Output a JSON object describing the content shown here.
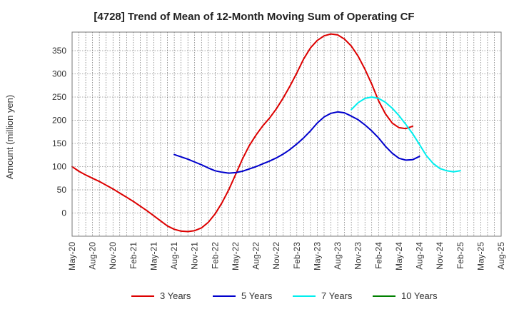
{
  "chart_data": {
    "type": "line",
    "title": "[4728]  Trend of Mean of 12-Month Moving Sum of Operating CF",
    "xlabel": "",
    "ylabel": "Amount (million yen)",
    "ylim": [
      -50,
      390
    ],
    "yticks": [
      0,
      50,
      100,
      150,
      200,
      250,
      300,
      350
    ],
    "grid": true,
    "legend_position": "bottom",
    "x_tick_labels": [
      "May-20",
      "Aug-20",
      "Nov-20",
      "Feb-21",
      "May-21",
      "Aug-21",
      "Nov-21",
      "Feb-22",
      "May-22",
      "Aug-22",
      "Nov-22",
      "Feb-23",
      "May-23",
      "Aug-23",
      "Nov-23",
      "Feb-24",
      "May-24",
      "Aug-24",
      "Nov-24",
      "Feb-25",
      "May-25",
      "Aug-25"
    ],
    "series": [
      {
        "name": "3 Years",
        "color": "#dd0000",
        "start_month_index": 0,
        "values": [
          100,
          90,
          82,
          75,
          68,
          60,
          52,
          43,
          34,
          25,
          15,
          5,
          -6,
          -17,
          -28,
          -35,
          -39,
          -40,
          -38,
          -32,
          -20,
          -2,
          22,
          50,
          83,
          116,
          145,
          168,
          188,
          205,
          225,
          248,
          274,
          302,
          332,
          356,
          372,
          382,
          386,
          384,
          375,
          360,
          338,
          310,
          278,
          242,
          214,
          194,
          184,
          182,
          187
        ]
      },
      {
        "name": "5 Years",
        "color": "#0000cc",
        "start_month_index": 15,
        "values": [
          126,
          121,
          116,
          110,
          104,
          97,
          91,
          88,
          86,
          87,
          90,
          95,
          100,
          106,
          112,
          119,
          127,
          137,
          149,
          162,
          177,
          194,
          207,
          215,
          218,
          216,
          209,
          201,
          190,
          177,
          162,
          144,
          129,
          118,
          114,
          115,
          122
        ]
      },
      {
        "name": "7 Years",
        "color": "#00eeee",
        "start_month_index": 41,
        "values": [
          223,
          238,
          247,
          250,
          247,
          239,
          226,
          210,
          191,
          171,
          148,
          124,
          107,
          96,
          91,
          89,
          91
        ]
      },
      {
        "name": "10 Years",
        "color": "#008000",
        "start_month_index": 0,
        "values": []
      }
    ]
  }
}
